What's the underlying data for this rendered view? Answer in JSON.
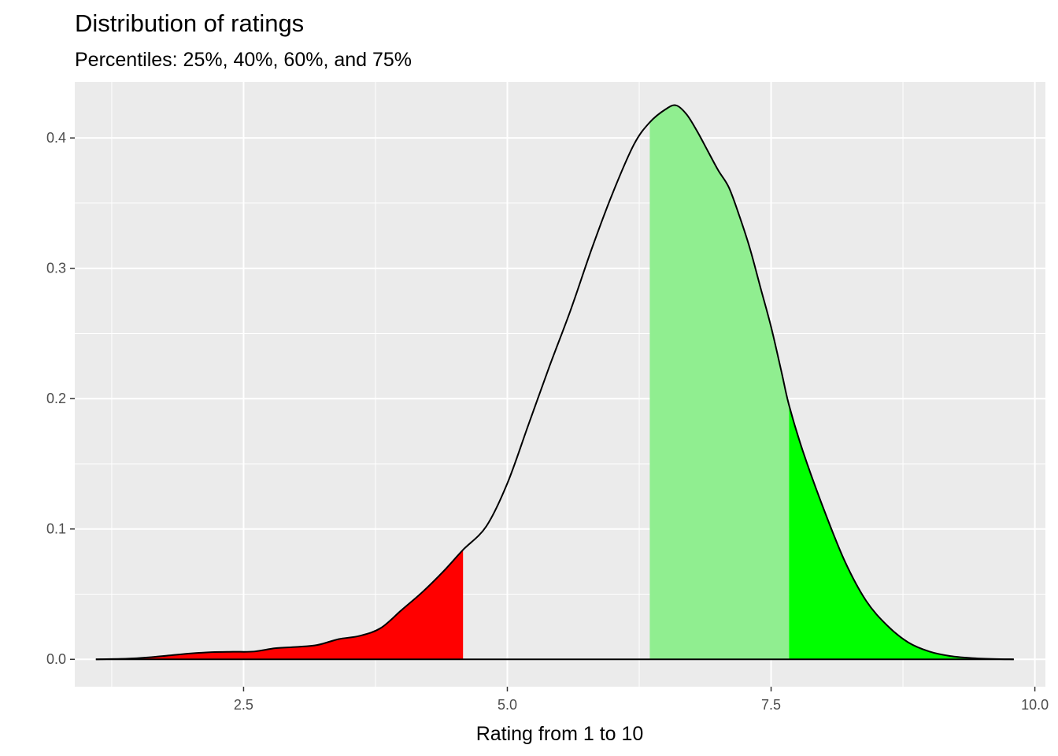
{
  "chart_data": {
    "type": "area",
    "title": "Distribution of ratings",
    "subtitle": "Percentiles: 25%, 40%, 60%, and 75%",
    "xlabel": "Rating from 1 to 10",
    "ylabel": "",
    "xlim": [
      0.9,
      10.1
    ],
    "ylim": [
      -0.021,
      0.443
    ],
    "x_ticks": [
      2.5,
      5.0,
      7.5,
      10.0
    ],
    "x_tick_labels": [
      "2.5",
      "5.0",
      "7.5",
      "10.0"
    ],
    "x_minor_ticks": [
      1.25,
      3.75,
      6.25,
      8.75
    ],
    "y_ticks": [
      0.0,
      0.1,
      0.2,
      0.3,
      0.4
    ],
    "y_tick_labels": [
      "0.0",
      "0.1",
      "0.2",
      "0.3",
      "0.4"
    ],
    "y_minor_ticks": [
      0.05,
      0.15,
      0.25,
      0.35
    ],
    "grid": true,
    "background": "#ebebeb",
    "series": [
      {
        "x": [
          1.1,
          1.4,
          1.6,
          1.8,
          2.0,
          2.2,
          2.4,
          2.6,
          2.8,
          3.0,
          3.2,
          3.4,
          3.6,
          3.8,
          4.0,
          4.2,
          4.4,
          4.58,
          4.8,
          5.0,
          5.2,
          5.4,
          5.6,
          5.8,
          6.0,
          6.2,
          6.35,
          6.5,
          6.6,
          6.7,
          6.8,
          6.9,
          7.0,
          7.1,
          7.2,
          7.3,
          7.4,
          7.5,
          7.6,
          7.67,
          7.8,
          8.0,
          8.2,
          8.4,
          8.6,
          8.8,
          9.0,
          9.2,
          9.4,
          9.6,
          9.8
        ],
        "y": [
          0.0,
          0.0005,
          0.0015,
          0.003,
          0.0045,
          0.0055,
          0.0058,
          0.006,
          0.0085,
          0.0095,
          0.011,
          0.0155,
          0.018,
          0.024,
          0.038,
          0.052,
          0.068,
          0.084,
          0.102,
          0.135,
          0.18,
          0.225,
          0.268,
          0.315,
          0.358,
          0.395,
          0.412,
          0.422,
          0.425,
          0.418,
          0.405,
          0.39,
          0.375,
          0.362,
          0.34,
          0.315,
          0.285,
          0.255,
          0.22,
          0.195,
          0.16,
          0.115,
          0.075,
          0.045,
          0.026,
          0.013,
          0.006,
          0.0025,
          0.001,
          0.0003,
          0.0
        ]
      }
    ],
    "percentiles": {
      "p25": 4.58,
      "p40": 6.35,
      "p60": 6.35,
      "p75": 7.67
    },
    "regions": [
      {
        "name": "below 25th percentile",
        "from": 1.1,
        "to": 4.58,
        "color": "#ff0000"
      },
      {
        "name": "60th to 75th percentile",
        "from": 6.35,
        "to": 7.67,
        "color": "#90ee90"
      },
      {
        "name": "above 75th percentile",
        "from": 7.67,
        "to": 9.8,
        "color": "#00ff00"
      }
    ],
    "line_color": "#000000"
  }
}
